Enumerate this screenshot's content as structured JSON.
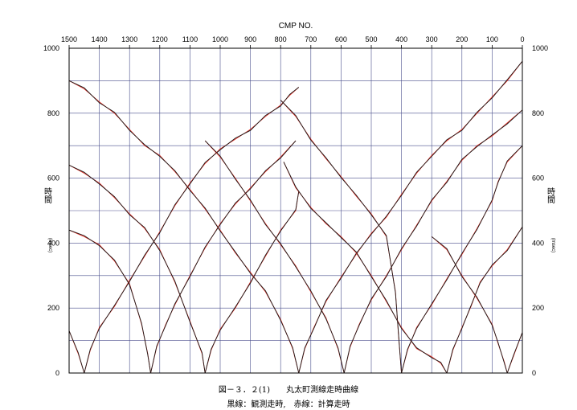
{
  "chart_data": {
    "type": "line",
    "title": "図－３．２(1)　　丸太町測線走時曲線",
    "subtitle": "黒線：観測走時,　赤線：計算走時",
    "top_axis_label": "CMP NO.",
    "ylabel_left": "時間",
    "ylabel_right": "時間",
    "y_unit": "(msec)",
    "x_range": [
      1500,
      0
    ],
    "x_ticks": [
      1500,
      1400,
      1300,
      1200,
      1100,
      1000,
      900,
      800,
      700,
      600,
      500,
      400,
      300,
      200,
      100,
      0
    ],
    "ylim": [
      0,
      1000
    ],
    "y_ticks": [
      0,
      200,
      400,
      600,
      800,
      1000
    ],
    "grid": true,
    "series_colors": {
      "observed": "#1a1a1a",
      "calculated": "#e8281e"
    },
    "series": [
      {
        "shot_cmp": 1450,
        "points": [
          [
            1450,
            0
          ],
          [
            1470,
            60
          ],
          [
            1500,
            130
          ]
        ]
      },
      {
        "shot_cmp": 1450,
        "points": [
          [
            1450,
            0
          ],
          [
            1430,
            70
          ],
          [
            1400,
            140
          ],
          [
            1350,
            205
          ],
          [
            1300,
            285
          ],
          [
            1250,
            360
          ],
          [
            1200,
            435
          ],
          [
            1150,
            515
          ],
          [
            1100,
            585
          ],
          [
            1050,
            645
          ],
          [
            1000,
            690
          ],
          [
            950,
            720
          ],
          [
            900,
            750
          ],
          [
            850,
            790
          ],
          [
            800,
            825
          ],
          [
            770,
            855
          ],
          [
            740,
            880
          ]
        ]
      },
      {
        "shot_cmp": 1230,
        "points": [
          [
            1500,
            440
          ],
          [
            1450,
            420
          ],
          [
            1400,
            395
          ],
          [
            1350,
            345
          ],
          [
            1300,
            275
          ],
          [
            1260,
            150
          ],
          [
            1240,
            60
          ],
          [
            1230,
            0
          ]
        ]
      },
      {
        "shot_cmp": 1230,
        "points": [
          [
            1230,
            0
          ],
          [
            1210,
            80
          ],
          [
            1180,
            150
          ],
          [
            1150,
            210
          ],
          [
            1100,
            300
          ],
          [
            1050,
            385
          ],
          [
            1000,
            460
          ],
          [
            950,
            520
          ],
          [
            900,
            570
          ],
          [
            850,
            620
          ],
          [
            800,
            665
          ],
          [
            750,
            715
          ]
        ]
      },
      {
        "shot_cmp": 1050,
        "points": [
          [
            1500,
            640
          ],
          [
            1450,
            615
          ],
          [
            1400,
            585
          ],
          [
            1350,
            540
          ],
          [
            1300,
            490
          ],
          [
            1250,
            445
          ],
          [
            1200,
            380
          ],
          [
            1150,
            280
          ],
          [
            1100,
            160
          ],
          [
            1060,
            60
          ],
          [
            1050,
            0
          ]
        ]
      },
      {
        "shot_cmp": 1050,
        "points": [
          [
            1050,
            0
          ],
          [
            1030,
            70
          ],
          [
            1000,
            135
          ],
          [
            950,
            200
          ],
          [
            900,
            280
          ],
          [
            850,
            360
          ],
          [
            800,
            440
          ],
          [
            750,
            500
          ],
          [
            740,
            560
          ]
        ]
      },
      {
        "shot_cmp": 740,
        "points": [
          [
            1500,
            900
          ],
          [
            1450,
            875
          ],
          [
            1400,
            835
          ],
          [
            1350,
            800
          ],
          [
            1300,
            750
          ],
          [
            1250,
            700
          ],
          [
            1200,
            670
          ],
          [
            1150,
            620
          ],
          [
            1100,
            565
          ],
          [
            1050,
            505
          ],
          [
            1000,
            440
          ],
          [
            950,
            370
          ],
          [
            900,
            310
          ],
          [
            850,
            250
          ],
          [
            800,
            165
          ],
          [
            760,
            75
          ],
          [
            740,
            0
          ]
        ]
      },
      {
        "shot_cmp": 740,
        "points": [
          [
            740,
            0
          ],
          [
            720,
            75
          ],
          [
            690,
            140
          ],
          [
            650,
            220
          ],
          [
            600,
            295
          ],
          [
            550,
            365
          ],
          [
            500,
            430
          ],
          [
            450,
            480
          ],
          [
            400,
            550
          ],
          [
            350,
            615
          ],
          [
            300,
            670
          ],
          [
            250,
            715
          ],
          [
            200,
            750
          ],
          [
            150,
            800
          ],
          [
            100,
            850
          ],
          [
            50,
            900
          ],
          [
            0,
            960
          ]
        ]
      },
      {
        "shot_cmp": 590,
        "points": [
          [
            1050,
            715
          ],
          [
            1000,
            665
          ],
          [
            950,
            600
          ],
          [
            900,
            530
          ],
          [
            850,
            460
          ],
          [
            800,
            395
          ],
          [
            750,
            330
          ],
          [
            700,
            250
          ],
          [
            650,
            170
          ],
          [
            610,
            75
          ],
          [
            590,
            0
          ]
        ]
      },
      {
        "shot_cmp": 590,
        "points": [
          [
            590,
            0
          ],
          [
            570,
            80
          ],
          [
            540,
            150
          ],
          [
            500,
            225
          ],
          [
            450,
            300
          ],
          [
            400,
            380
          ],
          [
            350,
            455
          ],
          [
            300,
            530
          ],
          [
            250,
            590
          ],
          [
            200,
            655
          ],
          [
            150,
            700
          ],
          [
            100,
            730
          ],
          [
            50,
            770
          ],
          [
            0,
            810
          ]
        ]
      },
      {
        "shot_cmp": 400,
        "points": [
          [
            800,
            840
          ],
          [
            750,
            790
          ],
          [
            700,
            720
          ],
          [
            650,
            660
          ],
          [
            600,
            605
          ],
          [
            550,
            545
          ],
          [
            500,
            490
          ],
          [
            450,
            420
          ],
          [
            420,
            250
          ],
          [
            410,
            120
          ],
          [
            400,
            0
          ]
        ]
      },
      {
        "shot_cmp": 400,
        "points": [
          [
            400,
            0
          ],
          [
            380,
            70
          ],
          [
            350,
            140
          ],
          [
            300,
            210
          ],
          [
            250,
            290
          ],
          [
            200,
            365
          ],
          [
            150,
            445
          ],
          [
            100,
            530
          ],
          [
            80,
            590
          ],
          [
            50,
            650
          ],
          [
            0,
            700
          ]
        ]
      },
      {
        "shot_cmp": 250,
        "points": [
          [
            790,
            650
          ],
          [
            750,
            570
          ],
          [
            700,
            510
          ],
          [
            650,
            460
          ],
          [
            600,
            420
          ],
          [
            550,
            370
          ],
          [
            500,
            300
          ],
          [
            450,
            220
          ],
          [
            400,
            140
          ],
          [
            350,
            75
          ],
          [
            300,
            50
          ],
          [
            270,
            30
          ],
          [
            250,
            0
          ]
        ]
      },
      {
        "shot_cmp": 250,
        "points": [
          [
            250,
            0
          ],
          [
            230,
            70
          ],
          [
            200,
            140
          ],
          [
            170,
            205
          ],
          [
            140,
            280
          ],
          [
            100,
            330
          ],
          [
            50,
            380
          ],
          [
            0,
            450
          ]
        ]
      },
      {
        "shot_cmp": 50,
        "points": [
          [
            300,
            420
          ],
          [
            250,
            380
          ],
          [
            200,
            300
          ],
          [
            150,
            230
          ],
          [
            100,
            150
          ],
          [
            80,
            90
          ],
          [
            60,
            35
          ],
          [
            50,
            0
          ]
        ]
      },
      {
        "shot_cmp": 50,
        "points": [
          [
            50,
            0
          ],
          [
            30,
            50
          ],
          [
            0,
            125
          ]
        ]
      }
    ]
  },
  "captions": {
    "line1": "図－３．２(1)　　丸太町測線走時曲線",
    "line2": "黒線：観測走時,　赤線：計算走時"
  }
}
